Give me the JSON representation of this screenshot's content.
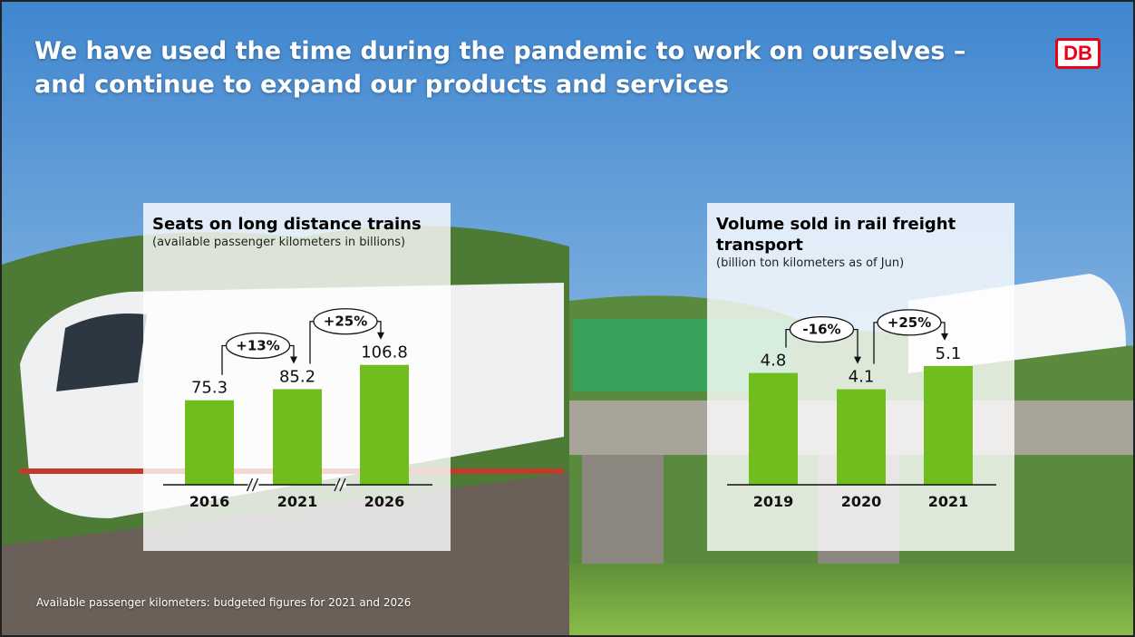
{
  "title": "We have used the time during the pandemic to work on ourselves – and continue to expand our products and services",
  "logo": "DB",
  "footnote": "Available passenger kilometers: budgeted figures for 2021 and 2026",
  "chart_data": [
    {
      "type": "bar",
      "title": "Seats on long distance trains",
      "subtitle": "(available passenger kilometers in billions)",
      "categories": [
        "2016",
        "2021",
        "2026"
      ],
      "values": [
        75.3,
        85.2,
        106.8
      ],
      "color": "#6fbe1e",
      "ylim": [
        0,
        130
      ],
      "annotations": [
        "+13%",
        "+25%"
      ],
      "broken_axis": true
    },
    {
      "type": "bar",
      "title": "Volume sold in rail freight transport",
      "subtitle": "(billion ton kilometers as of Jun)",
      "categories": [
        "2019",
        "2020",
        "2021"
      ],
      "values": [
        4.8,
        4.1,
        5.1
      ],
      "color": "#6fbe1e",
      "ylim": [
        0,
        6.2
      ],
      "annotations": [
        "-16%",
        "+25%"
      ],
      "broken_axis": false
    }
  ]
}
